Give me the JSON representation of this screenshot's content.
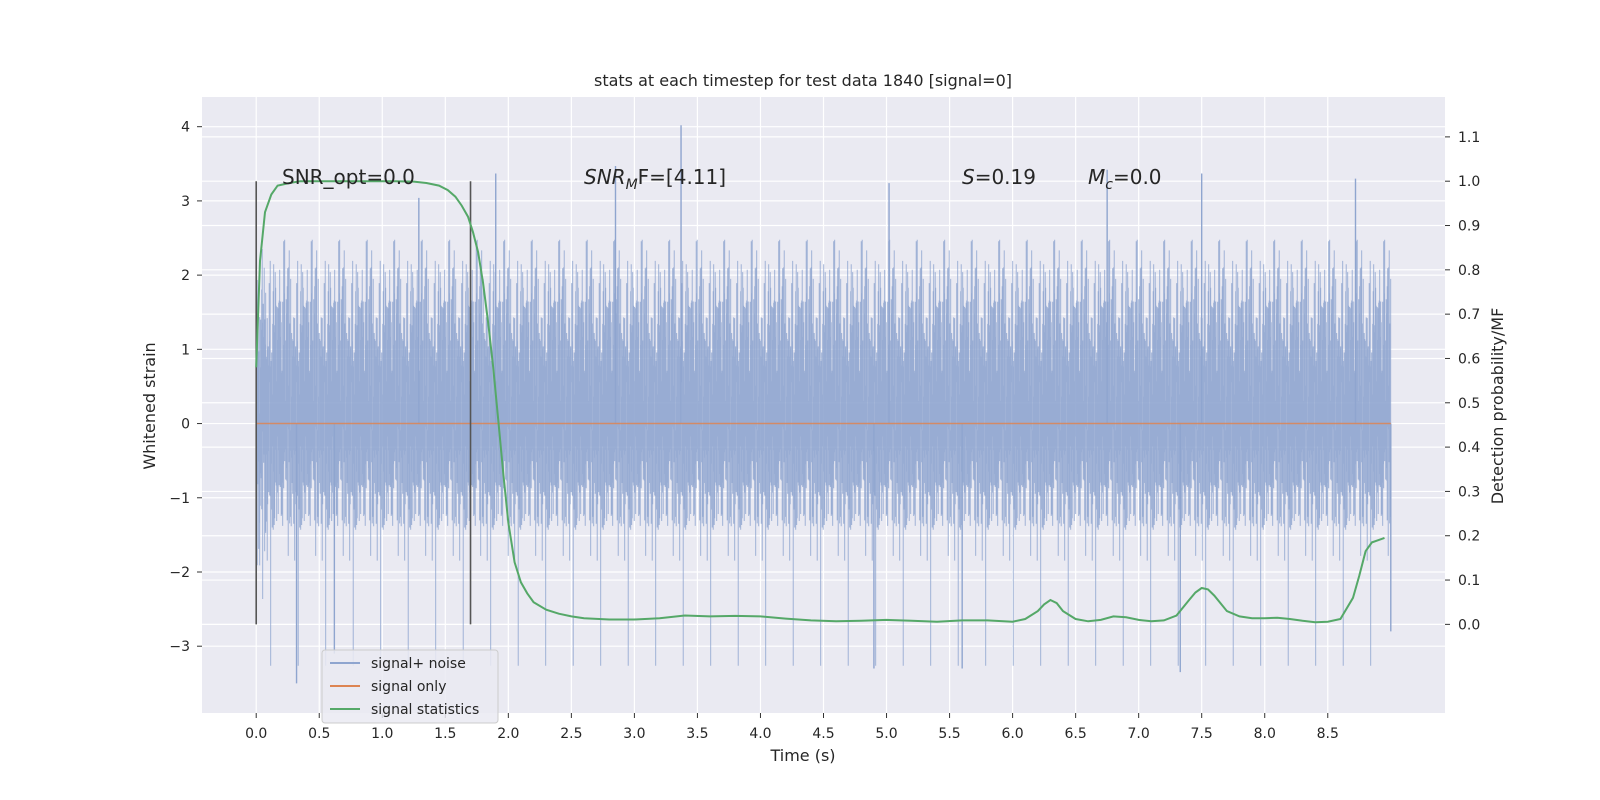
{
  "chart_data": {
    "type": "line",
    "title": "stats at each timestep for test data 1840 [signal=0]",
    "xlabel": "Time (s)",
    "ylabel": "Whitened strain",
    "y2label": "Detection probability/MF",
    "xlim": [
      -0.43,
      9.43
    ],
    "ylim": [
      -3.9,
      4.4
    ],
    "y2lim": [
      -0.2,
      1.19
    ],
    "xticks": [
      "0.0",
      "0.5",
      "1.0",
      "1.5",
      "2.0",
      "2.5",
      "3.0",
      "3.5",
      "4.0",
      "4.5",
      "5.0",
      "5.5",
      "6.0",
      "6.5",
      "7.0",
      "7.5",
      "8.0",
      "8.5"
    ],
    "yticks": [
      "−3",
      "−2",
      "−1",
      "0",
      "1",
      "2",
      "3",
      "4"
    ],
    "y2ticks": [
      "0.0",
      "0.1",
      "0.2",
      "0.3",
      "0.4",
      "0.5",
      "0.6",
      "0.7",
      "0.8",
      "0.9",
      "1.0",
      "1.1"
    ],
    "grid": true,
    "legend_position": "lower-left",
    "colors": {
      "noise": "#8fa5cf",
      "signal": "#dd8452",
      "stat": "#55a868",
      "vline": "#555555",
      "background": "#eaeaf2"
    },
    "series": [
      {
        "name": "signal+ noise",
        "axis": "left",
        "note_range": [
          0.0,
          9.0
        ],
        "envelope_peaks": [
          [
            0.32,
            -3.5
          ],
          [
            0.62,
            -3.1
          ],
          [
            1.29,
            3.04
          ],
          [
            1.9,
            3.37
          ],
          [
            2.85,
            3.47
          ],
          [
            3.37,
            4.02
          ],
          [
            5.02,
            3.24
          ],
          [
            6.75,
            3.42
          ],
          [
            7.5,
            3.37
          ],
          [
            8.72,
            3.3
          ],
          [
            5.6,
            -3.3
          ],
          [
            4.9,
            -3.3
          ],
          [
            7.33,
            -3.35
          ],
          [
            9.0,
            -2.8
          ]
        ]
      },
      {
        "name": "signal only",
        "axis": "left",
        "x": [
          0.0,
          9.0
        ],
        "y": [
          0.0,
          0.0
        ]
      },
      {
        "name": "signal statistics",
        "axis": "right",
        "x": [
          0.0,
          0.03,
          0.07,
          0.12,
          0.17,
          0.25,
          0.35,
          0.5,
          0.7,
          0.9,
          1.1,
          1.25,
          1.35,
          1.45,
          1.52,
          1.58,
          1.63,
          1.68,
          1.72,
          1.76,
          1.8,
          1.84,
          1.88,
          1.92,
          1.96,
          2.0,
          2.05,
          2.1,
          2.15,
          2.2,
          2.3,
          2.4,
          2.5,
          2.6,
          2.8,
          3.0,
          3.2,
          3.4,
          3.6,
          3.8,
          4.0,
          4.2,
          4.4,
          4.6,
          4.8,
          5.0,
          5.2,
          5.4,
          5.6,
          5.8,
          6.0,
          6.1,
          6.2,
          6.25,
          6.3,
          6.35,
          6.4,
          6.5,
          6.6,
          6.7,
          6.8,
          6.9,
          7.0,
          7.1,
          7.2,
          7.3,
          7.4,
          7.45,
          7.5,
          7.55,
          7.6,
          7.7,
          7.8,
          7.9,
          8.0,
          8.1,
          8.2,
          8.3,
          8.4,
          8.5,
          8.6,
          8.7,
          8.75,
          8.8,
          8.85,
          8.9,
          8.95
        ],
        "y": [
          0.58,
          0.82,
          0.93,
          0.97,
          0.99,
          0.995,
          1.0,
          1.0,
          1.0,
          1.0,
          1.0,
          0.999,
          0.996,
          0.99,
          0.98,
          0.965,
          0.945,
          0.92,
          0.885,
          0.84,
          0.77,
          0.68,
          0.58,
          0.46,
          0.34,
          0.23,
          0.14,
          0.095,
          0.07,
          0.05,
          0.033,
          0.024,
          0.018,
          0.014,
          0.011,
          0.011,
          0.014,
          0.02,
          0.018,
          0.019,
          0.018,
          0.013,
          0.009,
          0.007,
          0.008,
          0.01,
          0.008,
          0.006,
          0.009,
          0.009,
          0.006,
          0.012,
          0.03,
          0.045,
          0.055,
          0.048,
          0.03,
          0.012,
          0.007,
          0.01,
          0.018,
          0.016,
          0.01,
          0.007,
          0.009,
          0.02,
          0.055,
          0.072,
          0.082,
          0.079,
          0.065,
          0.03,
          0.018,
          0.014,
          0.014,
          0.015,
          0.012,
          0.008,
          0.005,
          0.006,
          0.012,
          0.06,
          0.11,
          0.165,
          0.185,
          0.19,
          0.195
        ]
      }
    ],
    "vlines": [
      {
        "x": 0.0
      },
      {
        "x": 1.7
      }
    ],
    "annotations": [
      {
        "key": "snr_opt",
        "text": "SNR_opt=0.0"
      },
      {
        "key": "snr_mf",
        "text_main": "SNR",
        "text_sub": "M",
        "text_tail": "F=[4.11]"
      },
      {
        "key": "s",
        "text_main": "S",
        "text_tail": "=0.19"
      },
      {
        "key": "mc",
        "text_main": "M",
        "text_sub": "c",
        "text_tail": "=0.0"
      }
    ],
    "legend": [
      "signal+ noise",
      "signal only",
      "signal statistics"
    ]
  }
}
